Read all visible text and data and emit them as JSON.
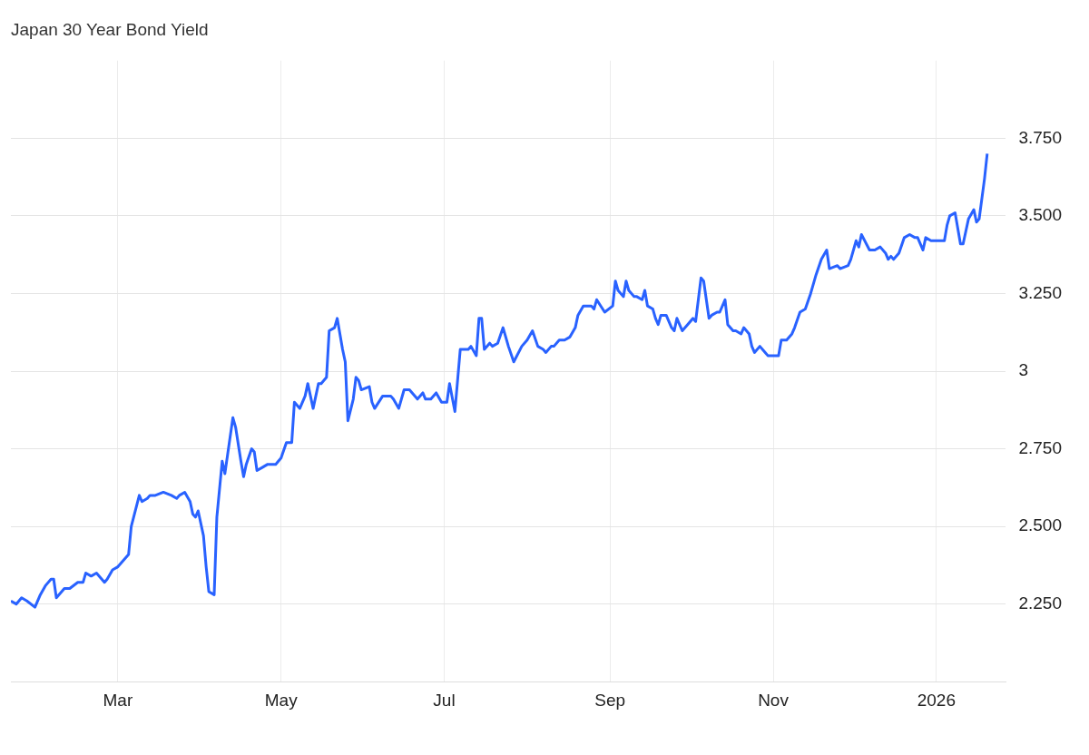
{
  "chart_data": {
    "type": "line",
    "title": "Japan 30 Year Bond Yield",
    "x": [
      "2025-01-20",
      "2025-01-22",
      "2025-01-24",
      "2025-01-26",
      "2025-01-29",
      "2025-01-31",
      "2025-02-02",
      "2025-02-04",
      "2025-02-05",
      "2025-02-06",
      "2025-02-09",
      "2025-02-11",
      "2025-02-14",
      "2025-02-16",
      "2025-02-17",
      "2025-02-19",
      "2025-02-21",
      "2025-02-24",
      "2025-02-25",
      "2025-02-27",
      "2025-03-01",
      "2025-03-03",
      "2025-03-05",
      "2025-03-06",
      "2025-03-09",
      "2025-03-10",
      "2025-03-12",
      "2025-03-13",
      "2025-03-15",
      "2025-03-18",
      "2025-03-21",
      "2025-03-23",
      "2025-03-24",
      "2025-03-26",
      "2025-03-28",
      "2025-03-29",
      "2025-03-30",
      "2025-03-31",
      "2025-04-02",
      "2025-04-03",
      "2025-04-04",
      "2025-04-06",
      "2025-04-07",
      "2025-04-09",
      "2025-04-10",
      "2025-04-11",
      "2025-04-13",
      "2025-04-14",
      "2025-04-16",
      "2025-04-17",
      "2025-04-18",
      "2025-04-20",
      "2025-04-21",
      "2025-04-22",
      "2025-04-24",
      "2025-04-26",
      "2025-04-29",
      "2025-05-01",
      "2025-05-03",
      "2025-05-05",
      "2025-05-06",
      "2025-05-08",
      "2025-05-10",
      "2025-05-11",
      "2025-05-13",
      "2025-05-15",
      "2025-05-16",
      "2025-05-18",
      "2025-05-19",
      "2025-05-21",
      "2025-05-22",
      "2025-05-24",
      "2025-05-25",
      "2025-05-26",
      "2025-05-28",
      "2025-05-29",
      "2025-05-30",
      "2025-05-31",
      "2025-06-03",
      "2025-06-04",
      "2025-06-05",
      "2025-06-08",
      "2025-06-11",
      "2025-06-12",
      "2025-06-14",
      "2025-06-16",
      "2025-06-18",
      "2025-06-21",
      "2025-06-23",
      "2025-06-24",
      "2025-06-26",
      "2025-06-28",
      "2025-06-30",
      "2025-07-02",
      "2025-07-03",
      "2025-07-05",
      "2025-07-07",
      "2025-07-10",
      "2025-07-11",
      "2025-07-13",
      "2025-07-14",
      "2025-07-15",
      "2025-07-16",
      "2025-07-18",
      "2025-07-19",
      "2025-07-21",
      "2025-07-23",
      "2025-07-25",
      "2025-07-27",
      "2025-07-30",
      "2025-08-01",
      "2025-08-03",
      "2025-08-05",
      "2025-08-07",
      "2025-08-08",
      "2025-08-10",
      "2025-08-11",
      "2025-08-13",
      "2025-08-15",
      "2025-08-17",
      "2025-08-19",
      "2025-08-20",
      "2025-08-22",
      "2025-08-25",
      "2025-08-26",
      "2025-08-27",
      "2025-08-30",
      "2025-09-02",
      "2025-09-03",
      "2025-09-04",
      "2025-09-06",
      "2025-09-07",
      "2025-09-08",
      "2025-09-10",
      "2025-09-11",
      "2025-09-13",
      "2025-09-14",
      "2025-09-15",
      "2025-09-17",
      "2025-09-18",
      "2025-09-19",
      "2025-09-20",
      "2025-09-22",
      "2025-09-24",
      "2025-09-25",
      "2025-09-26",
      "2025-09-28",
      "2025-09-30",
      "2025-10-02",
      "2025-10-03",
      "2025-10-05",
      "2025-10-06",
      "2025-10-08",
      "2025-10-09",
      "2025-10-11",
      "2025-10-12",
      "2025-10-14",
      "2025-10-15",
      "2025-10-17",
      "2025-10-18",
      "2025-10-20",
      "2025-10-21",
      "2025-10-23",
      "2025-10-24",
      "2025-10-25",
      "2025-10-27",
      "2025-10-29",
      "2025-10-30",
      "2025-11-03",
      "2025-11-04",
      "2025-11-06",
      "2025-11-08",
      "2025-11-09",
      "2025-11-11",
      "2025-11-13",
      "2025-11-15",
      "2025-11-17",
      "2025-11-19",
      "2025-11-21",
      "2025-11-22",
      "2025-11-25",
      "2025-11-26",
      "2025-11-29",
      "2025-11-30",
      "2025-12-02",
      "2025-12-03",
      "2025-12-04",
      "2025-12-07",
      "2025-12-09",
      "2025-12-11",
      "2025-12-13",
      "2025-12-14",
      "2025-12-15",
      "2025-12-16",
      "2025-12-18",
      "2025-12-20",
      "2025-12-22",
      "2025-12-24",
      "2025-12-25",
      "2025-12-27",
      "2025-12-28",
      "2025-12-30",
      "2026-01-04",
      "2026-01-05",
      "2026-01-06",
      "2026-01-08",
      "2026-01-10",
      "2026-01-11",
      "2026-01-13",
      "2026-01-15",
      "2026-01-16",
      "2026-01-17",
      "2026-01-19",
      "2026-01-20"
    ],
    "series": [
      {
        "color": "#2962ff",
        "values": [
          2.26,
          2.25,
          2.27,
          2.26,
          2.24,
          2.28,
          2.31,
          2.33,
          2.33,
          2.27,
          2.3,
          2.3,
          2.32,
          2.32,
          2.35,
          2.34,
          2.35,
          2.32,
          2.33,
          2.36,
          2.37,
          2.39,
          2.41,
          2.5,
          2.6,
          2.58,
          2.59,
          2.6,
          2.6,
          2.61,
          2.6,
          2.59,
          2.6,
          2.61,
          2.58,
          2.54,
          2.53,
          2.55,
          2.47,
          2.37,
          2.29,
          2.28,
          2.53,
          2.71,
          2.67,
          2.73,
          2.85,
          2.82,
          2.71,
          2.66,
          2.7,
          2.75,
          2.74,
          2.68,
          2.69,
          2.7,
          2.7,
          2.72,
          2.77,
          2.77,
          2.9,
          2.88,
          2.92,
          2.96,
          2.88,
          2.96,
          2.96,
          2.98,
          3.13,
          3.14,
          3.17,
          3.07,
          3.03,
          2.84,
          2.91,
          2.98,
          2.97,
          2.94,
          2.95,
          2.9,
          2.88,
          2.92,
          2.92,
          2.91,
          2.88,
          2.94,
          2.94,
          2.91,
          2.93,
          2.91,
          2.91,
          2.93,
          2.9,
          2.9,
          2.96,
          2.87,
          3.07,
          3.07,
          3.08,
          3.05,
          3.17,
          3.17,
          3.07,
          3.09,
          3.08,
          3.09,
          3.14,
          3.08,
          3.03,
          3.08,
          3.1,
          3.13,
          3.08,
          3.07,
          3.06,
          3.08,
          3.08,
          3.1,
          3.1,
          3.11,
          3.14,
          3.18,
          3.21,
          3.21,
          3.2,
          3.23,
          3.19,
          3.21,
          3.29,
          3.26,
          3.24,
          3.29,
          3.26,
          3.24,
          3.24,
          3.23,
          3.26,
          3.21,
          3.2,
          3.17,
          3.15,
          3.18,
          3.18,
          3.14,
          3.13,
          3.17,
          3.13,
          3.15,
          3.17,
          3.16,
          3.3,
          3.29,
          3.17,
          3.18,
          3.19,
          3.19,
          3.23,
          3.15,
          3.13,
          3.13,
          3.12,
          3.14,
          3.12,
          3.08,
          3.06,
          3.08,
          3.06,
          3.05,
          3.05,
          3.1,
          3.1,
          3.12,
          3.14,
          3.19,
          3.2,
          3.25,
          3.31,
          3.36,
          3.39,
          3.33,
          3.34,
          3.33,
          3.34,
          3.36,
          3.42,
          3.4,
          3.44,
          3.39,
          3.39,
          3.4,
          3.38,
          3.36,
          3.37,
          3.36,
          3.38,
          3.43,
          3.44,
          3.43,
          3.43,
          3.39,
          3.43,
          3.42,
          3.42,
          3.47,
          3.5,
          3.51,
          3.41,
          3.41,
          3.49,
          3.52,
          3.48,
          3.49,
          3.62,
          3.7
        ]
      }
    ],
    "xlim": [
      "2025-01-20",
      "2026-01-27"
    ],
    "xticks": [
      {
        "value": "2025-03-01",
        "label": "Mar"
      },
      {
        "value": "2025-05-01",
        "label": "May"
      },
      {
        "value": "2025-07-01",
        "label": "Jul"
      },
      {
        "value": "2025-09-01",
        "label": "Sep"
      },
      {
        "value": "2025-11-01",
        "label": "Nov"
      },
      {
        "value": "2026-01-01",
        "label": "2026"
      }
    ],
    "ylim": [
      2,
      4
    ],
    "yticks": [
      {
        "value": 2.25,
        "label": "2.250"
      },
      {
        "value": 2.5,
        "label": "2.500"
      },
      {
        "value": 2.75,
        "label": "2.750"
      },
      3,
      {
        "value": 3.25,
        "label": "3.250"
      },
      {
        "value": 3.5,
        "label": "3.500"
      },
      {
        "value": 3.75,
        "label": "3.750"
      }
    ],
    "grid": true
  }
}
